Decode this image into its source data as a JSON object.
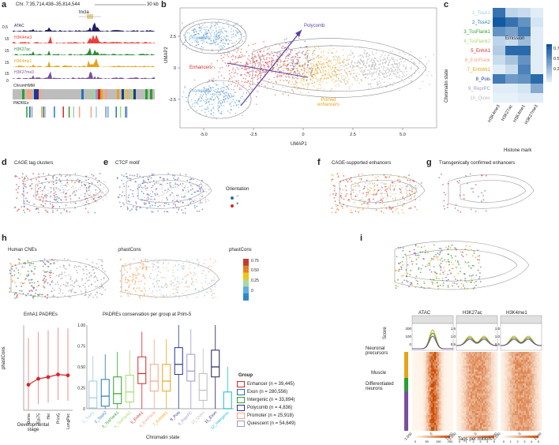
{
  "panels": {
    "a": {
      "letter": "a",
      "coord": "Chr. 7:35,714,438–35,814,544",
      "scale": "30 kb",
      "gene": "tncla",
      "tracks": [
        {
          "name": "ATAC",
          "color": "#1f1f5e",
          "axis": "0.5"
        },
        {
          "name": "H3K4me3",
          "color": "#e8413a",
          "axis": "15"
        },
        {
          "name": "H3K27ac",
          "color": "#2e8b3a",
          "axis": "15"
        },
        {
          "name": "H3K4me1",
          "color": "#e8a317",
          "axis": "15"
        },
        {
          "name": "H3K27me3",
          "color": "#7a4fa0",
          "axis": "15"
        }
      ],
      "zero": "0",
      "chromhmm": "ChromHMM",
      "padres": "PADREs"
    },
    "b": {
      "letter": "b",
      "xlabel": "UMAP1",
      "ylabel": "UMAP2",
      "xticks": [
        "-5.0",
        "-2.5",
        "0",
        "2.5",
        "5.0"
      ],
      "yticks": [
        "2.5",
        "0",
        "-2.5"
      ],
      "labels": {
        "promoters_top": "Promoters",
        "enhancers": "Enhancers",
        "promoters_bottom": "Promoters",
        "polycomb": "Polycomb",
        "primed": "Primed\nenhancers"
      }
    },
    "c": {
      "letter": "c",
      "ylabel": "Chromatin state",
      "xlabel": "Histone mark",
      "legend_title": "Emission",
      "legend_ticks": [
        "0.75",
        "0.50",
        "0.25"
      ],
      "states": [
        {
          "name": "1_TssA1",
          "color": "#9ecae1"
        },
        {
          "name": "2_TssA2",
          "color": "#1f78b4"
        },
        {
          "name": "3_TssFlank1",
          "color": "#2ca02c"
        },
        {
          "name": "4_TssFlank2",
          "color": "#a6d96a"
        },
        {
          "name": "5_EnhA1",
          "color": "#d62728"
        },
        {
          "name": "6_EnhFlank",
          "color": "#f4a582"
        },
        {
          "name": "7_EnhWk1",
          "color": "#e8a317"
        },
        {
          "name": "8_Pois",
          "color": "#253494"
        },
        {
          "name": "9_ReprPC",
          "color": "#9e9ac8"
        },
        {
          "name": "10_Quies",
          "color": "#bdbdbd"
        }
      ],
      "marks": [
        "H3K4me3",
        "H3K27ac",
        "H3K4me1",
        "H3K27me3"
      ],
      "values": [
        [
          0.8,
          0.2,
          0.15,
          0.05
        ],
        [
          0.95,
          0.8,
          0.6,
          0.1
        ],
        [
          0.6,
          0.5,
          0.75,
          0.05
        ],
        [
          0.2,
          0.15,
          0.35,
          0.05
        ],
        [
          0.25,
          0.85,
          0.85,
          0.05
        ],
        [
          0.15,
          0.3,
          0.6,
          0.05
        ],
        [
          0.05,
          0.15,
          0.7,
          0.05
        ],
        [
          0.75,
          0.55,
          0.6,
          0.85
        ],
        [
          0.05,
          0.05,
          0.1,
          0.45
        ],
        [
          0.02,
          0.02,
          0.05,
          0.05
        ]
      ]
    },
    "d": {
      "letter": "d",
      "title": "CAGE tag clusters"
    },
    "e": {
      "letter": "e",
      "title": "CTCF motif",
      "legend_title": "Orientation",
      "legend": [
        "−",
        "+"
      ]
    },
    "f": {
      "letter": "f",
      "title": "CAGE-supported enhancers"
    },
    "g": {
      "letter": "g",
      "title": "Transgenically confirmed enhancers"
    },
    "h": {
      "letter": "h",
      "cnes": "Human CNEs",
      "phastcons": "phastCons",
      "bar_title": "phastCons",
      "bar_ticks": [
        "0.75",
        "0.50",
        "0.25",
        "0"
      ],
      "line_title": "EnhA1 PADREs",
      "line_ylabel": "phastCons",
      "line_xlabel": "Developmental\nstage",
      "stages": [
        "Dome",
        "Epi75",
        "Hei",
        "Prim5",
        "LongPec"
      ],
      "stage_values": [
        0.3,
        0.37,
        0.39,
        0.42,
        0.41
      ],
      "box_title": "PADREs conservation per group at Prim-5",
      "box_xlabel": "Chromatin state",
      "box_states": [
        "1_TssA1",
        "2_TssA2",
        "3_TssFlank1",
        "4_TssFlank2",
        "5_EnhA1",
        "6_EnhFlank",
        "7_EnhWk1",
        "8_Pois",
        "9_ReprPC",
        "10_Quies",
        "11_Exon",
        "12_Intergenic"
      ],
      "box_medians": [
        0.13,
        0.15,
        0.18,
        0.2,
        0.42,
        0.33,
        0.33,
        0.53,
        0.45,
        0.22,
        0.5,
        0.0
      ],
      "box_yticks": [
        "1.00",
        "0.75",
        "0.50",
        "0.25",
        "0"
      ],
      "group_title": "Group",
      "groups": [
        {
          "label": "Enhancer (n = 39,445)",
          "color": "#d62728"
        },
        {
          "label": "Exon (n = 280,556)",
          "color": "#2b6cb0"
        },
        {
          "label": "Intergenic (n = 33,894)",
          "color": "#2ca02c"
        },
        {
          "label": "Polycomb (n = 4,836)",
          "color": "#253494"
        },
        {
          "label": "Promoter (n = 25,918)",
          "color": "#f4a582"
        },
        {
          "label": "Quiescent (n = 54,649)",
          "color": "#9e9ac8"
        }
      ]
    },
    "i": {
      "letter": "i",
      "heads": [
        "ATAC",
        "H3K27ac",
        "H3K4me1"
      ],
      "score": "Score",
      "groups": [
        "Neuronal\nprecursors",
        "Muscle",
        "Differentiated\nneurons"
      ],
      "xticks": [
        "-1,000",
        "0",
        "1,000"
      ],
      "tag_label": "Tags per million",
      "scale1": [
        "0",
        "50",
        "150",
        "250"
      ],
      "scale2": [
        "0",
        "1",
        "2",
        "3",
        "4",
        "5"
      ],
      "scale3": [
        "0",
        "1",
        "2",
        "3",
        "4",
        "5"
      ],
      "yt_atac": [
        "200",
        "100",
        "0"
      ],
      "yt_k27": [
        "1.5",
        "1.0",
        "0.5"
      ],
      "yt_k4": [
        "1.5",
        "1.0",
        "0.5"
      ]
    }
  },
  "chart_data": [
    {
      "type": "heatmap",
      "title": "Chromatin state emissions",
      "xlabel": "Histone mark",
      "ylabel": "Chromatin state",
      "x": [
        "H3K4me3",
        "H3K27ac",
        "H3K4me1",
        "H3K27me3"
      ],
      "y": [
        "1_TssA1",
        "2_TssA2",
        "3_TssFlank1",
        "4_TssFlank2",
        "5_EnhA1",
        "6_EnhFlank",
        "7_EnhWk1",
        "8_Pois",
        "9_ReprPC",
        "10_Quies"
      ]
    },
    {
      "type": "line",
      "title": "EnhA1 PADREs",
      "x": [
        "Dome",
        "Epi75",
        "Hei",
        "Prim5",
        "LongPec"
      ],
      "y": [
        0.3,
        0.37,
        0.39,
        0.42,
        0.41
      ],
      "ylabel": "phastCons"
    },
    {
      "type": "bar",
      "title": "PADREs conservation per group at Prim-5",
      "categories": [
        "1_TssA1",
        "2_TssA2",
        "3_TssFlank1",
        "4_TssFlank2",
        "5_EnhA1",
        "6_EnhFlank",
        "7_EnhWk1",
        "8_Pois",
        "9_ReprPC",
        "10_Quies",
        "11_Exon",
        "12_Intergenic"
      ],
      "values": [
        0.13,
        0.15,
        0.18,
        0.2,
        0.42,
        0.33,
        0.33,
        0.53,
        0.45,
        0.22,
        0.5,
        0.0
      ],
      "ylim": [
        0,
        1
      ]
    }
  ]
}
